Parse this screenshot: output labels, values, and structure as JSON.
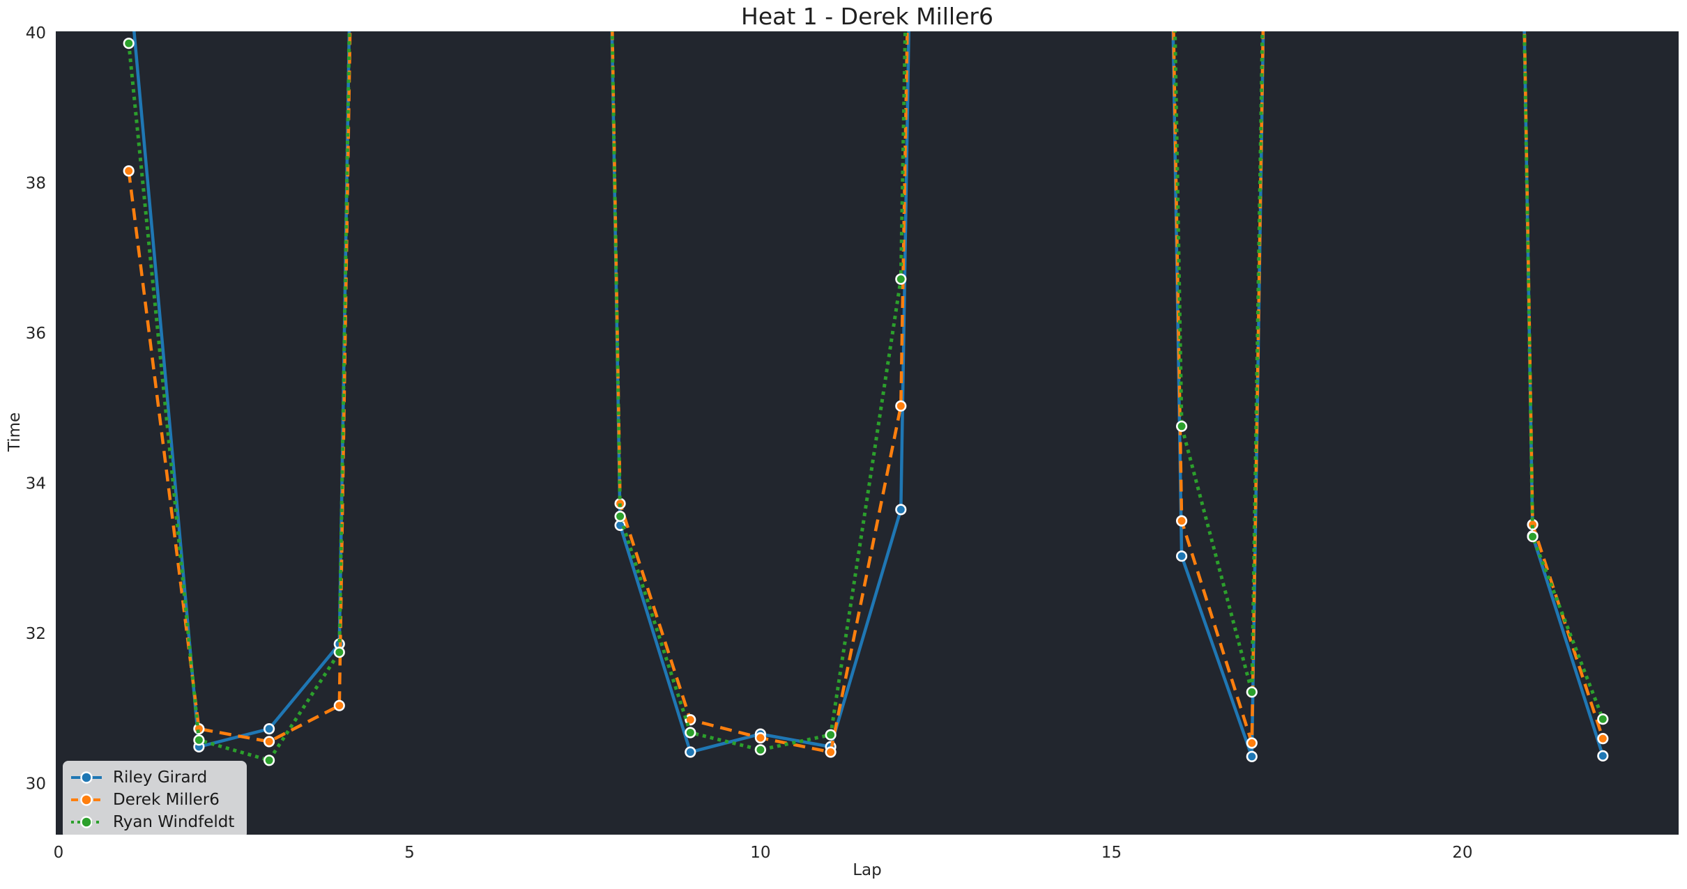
{
  "title": "Heat 1 - Derek Miller6",
  "chart_data": {
    "type": "line",
    "title": "Heat 1 - Derek Miller6",
    "xlabel": "Lap",
    "ylabel": "Time",
    "xlim": [
      -0.04,
      23.08
    ],
    "ylim": [
      29.32,
      40.02
    ],
    "x_ticks": [
      0,
      5,
      10,
      15,
      20
    ],
    "y_ticks": [
      30,
      32,
      34,
      36,
      38,
      40
    ],
    "grid": false,
    "legend_position": "lower-left",
    "plot_bg": "#22262e",
    "fig_bg": "#ffffff",
    "text_color": "#262626",
    "marker_edge_color": "#ffffff",
    "x": [
      1,
      2,
      3,
      4,
      5,
      6,
      7,
      8,
      9,
      10,
      11,
      12,
      13,
      14,
      15,
      16,
      17,
      18,
      19,
      20,
      21,
      22
    ],
    "series": [
      {
        "name": "Riley Girard",
        "color": "#1f77b4",
        "dash": "solid",
        "values": [
          40.8,
          30.49,
          30.73,
          31.86,
          90,
          90,
          90,
          33.44,
          30.42,
          30.66,
          30.49,
          33.65,
          90,
          90,
          90,
          33.03,
          30.36,
          90,
          90,
          90,
          33.3,
          30.37
        ]
      },
      {
        "name": "Derek Miller6",
        "color": "#ff7f0e",
        "dash": "dashed",
        "values": [
          38.16,
          30.73,
          30.56,
          31.04,
          90,
          90,
          90,
          33.73,
          30.85,
          30.61,
          30.42,
          35.03,
          90,
          90,
          90,
          33.5,
          30.54,
          90,
          90,
          90,
          33.45,
          30.6
        ]
      },
      {
        "name": "Ryan Windfeldt",
        "color": "#2ca02c",
        "dash": "dotted",
        "values": [
          39.86,
          30.58,
          30.31,
          31.75,
          90,
          90,
          90,
          33.56,
          30.68,
          30.45,
          30.65,
          36.72,
          90,
          90,
          90,
          34.76,
          31.22,
          90,
          90,
          90,
          33.29,
          30.86
        ]
      }
    ]
  }
}
